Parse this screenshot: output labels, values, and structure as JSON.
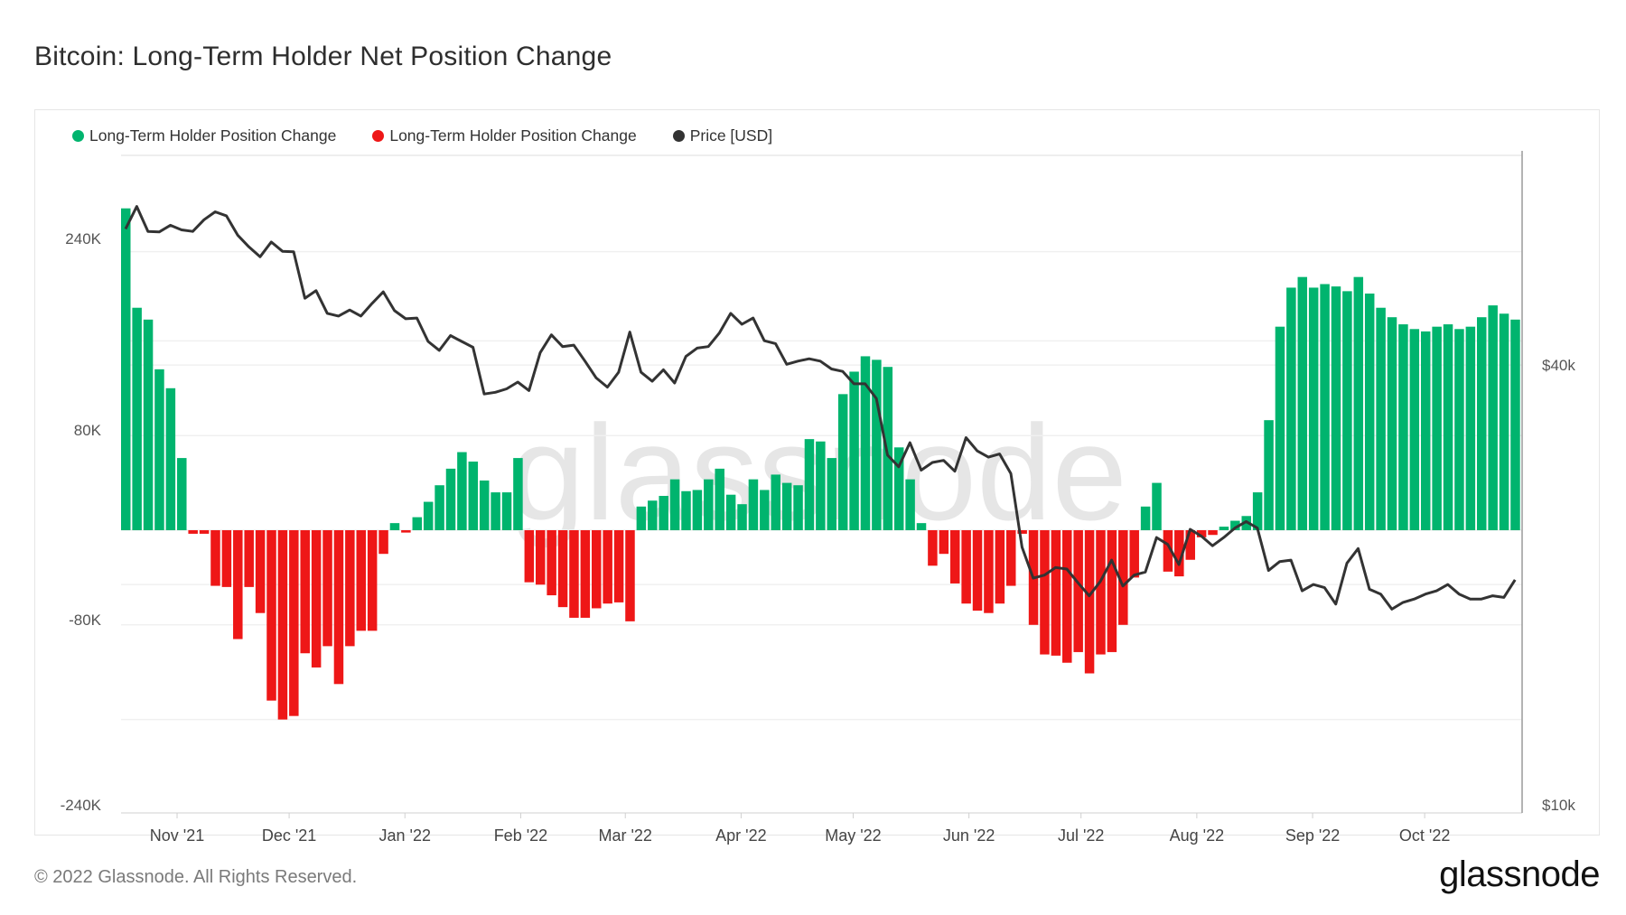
{
  "title": "Bitcoin: Long-Term Holder Net Position Change",
  "legend": [
    {
      "label": "Long-Term Holder Position Change",
      "color": "#00b46e"
    },
    {
      "label": "Long-Term Holder Position Change",
      "color": "#ee1717"
    },
    {
      "label": "Price [USD]",
      "color": "#333333"
    }
  ],
  "footer": {
    "copyright": "© 2022 Glassnode. All Rights Reserved.",
    "logo": "glassnode"
  },
  "watermark": "glassnode",
  "chart_data": {
    "type": "bar",
    "title": "Bitcoin: Long-Term Holder Net Position Change",
    "grid": true,
    "legend_position": "top-left",
    "x_tick_labels": [
      "Nov '21",
      "Dec '21",
      "Jan '22",
      "Feb '22",
      "Mar '22",
      "Apr '22",
      "May '22",
      "Jun '22",
      "Jul '22",
      "Aug '22",
      "Sep '22",
      "Oct '22"
    ],
    "x_tick_dates": [
      "2021-11-01",
      "2021-12-01",
      "2022-01-01",
      "2022-02-01",
      "2022-03-01",
      "2022-04-01",
      "2022-05-01",
      "2022-06-01",
      "2022-07-01",
      "2022-08-01",
      "2022-09-01",
      "2022-10-01"
    ],
    "y_left": {
      "tick_labels": [
        "240K",
        "80K",
        "-80K",
        "-240K"
      ],
      "ticks": [
        240000,
        80000,
        -80000,
        -240000
      ],
      "range": [
        -240000,
        280000
      ]
    },
    "y_right": {
      "scale": "log",
      "tick_labels": [
        "$40k",
        "$10k"
      ],
      "ticks": [
        40000,
        10000
      ],
      "range": [
        10000,
        80000
      ]
    },
    "dates": [
      "2021-10-17",
      "2021-10-20",
      "2021-10-23",
      "2021-10-26",
      "2021-10-29",
      "2021-11-01",
      "2021-11-04",
      "2021-11-07",
      "2021-11-10",
      "2021-11-13",
      "2021-11-16",
      "2021-11-19",
      "2021-11-22",
      "2021-11-25",
      "2021-11-28",
      "2021-12-01",
      "2021-12-04",
      "2021-12-07",
      "2021-12-10",
      "2021-12-13",
      "2021-12-16",
      "2021-12-19",
      "2021-12-22",
      "2021-12-25",
      "2021-12-28",
      "2021-12-31",
      "2022-01-03",
      "2022-01-06",
      "2022-01-09",
      "2022-01-12",
      "2022-01-15",
      "2022-01-18",
      "2022-01-21",
      "2022-01-24",
      "2022-01-27",
      "2022-01-30",
      "2022-02-02",
      "2022-02-05",
      "2022-02-08",
      "2022-02-11",
      "2022-02-14",
      "2022-02-17",
      "2022-02-20",
      "2022-02-23",
      "2022-02-26",
      "2022-03-01",
      "2022-03-04",
      "2022-03-07",
      "2022-03-10",
      "2022-03-13",
      "2022-03-16",
      "2022-03-19",
      "2022-03-22",
      "2022-03-25",
      "2022-03-28",
      "2022-03-31",
      "2022-04-03",
      "2022-04-06",
      "2022-04-09",
      "2022-04-12",
      "2022-04-15",
      "2022-04-18",
      "2022-04-21",
      "2022-04-24",
      "2022-04-27",
      "2022-04-30",
      "2022-05-03",
      "2022-05-06",
      "2022-05-09",
      "2022-05-12",
      "2022-05-15",
      "2022-05-18",
      "2022-05-21",
      "2022-05-24",
      "2022-05-27",
      "2022-05-30",
      "2022-06-02",
      "2022-06-05",
      "2022-06-08",
      "2022-06-11",
      "2022-06-14",
      "2022-06-17",
      "2022-06-20",
      "2022-06-23",
      "2022-06-26",
      "2022-06-29",
      "2022-07-02",
      "2022-07-05",
      "2022-07-08",
      "2022-07-11",
      "2022-07-14",
      "2022-07-17",
      "2022-07-20",
      "2022-07-23",
      "2022-07-26",
      "2022-07-29",
      "2022-08-01",
      "2022-08-04",
      "2022-08-07",
      "2022-08-10",
      "2022-08-13",
      "2022-08-16",
      "2022-08-19",
      "2022-08-22",
      "2022-08-25",
      "2022-08-28",
      "2022-08-31",
      "2022-09-03",
      "2022-09-06",
      "2022-09-09",
      "2022-09-12",
      "2022-09-15",
      "2022-09-18",
      "2022-09-21",
      "2022-09-24",
      "2022-09-27",
      "2022-09-30",
      "2022-10-03",
      "2022-10-06",
      "2022-10-09",
      "2022-10-12",
      "2022-10-15",
      "2022-10-18",
      "2022-10-21",
      "2022-10-24"
    ],
    "series": [
      {
        "name": "Long-Term Holder Position Change",
        "type": "bar",
        "axis": "left",
        "positive_color": "#00b46e",
        "negative_color": "#ee1717",
        "values": [
          272000,
          188000,
          178000,
          136000,
          120000,
          61000,
          -3000,
          -3000,
          -47000,
          -48000,
          -92000,
          -48000,
          -70000,
          -144000,
          -160000,
          -157000,
          -104000,
          -116000,
          -98000,
          -130000,
          -98000,
          -85000,
          -85000,
          -20000,
          6000,
          -2000,
          11000,
          24000,
          38000,
          52000,
          66000,
          58000,
          42000,
          32000,
          32000,
          61000,
          -44000,
          -46000,
          -55000,
          -65000,
          -74000,
          -74000,
          -66000,
          -62000,
          -61000,
          -77000,
          20000,
          25000,
          29000,
          43000,
          33000,
          34000,
          43000,
          52000,
          30000,
          22000,
          43000,
          34000,
          47000,
          40000,
          38000,
          77000,
          75000,
          61000,
          115000,
          134000,
          147000,
          144000,
          138000,
          70000,
          43000,
          6000,
          -30000,
          -20000,
          -45000,
          -62000,
          -68000,
          -70000,
          -62000,
          -47000,
          -3000,
          -80000,
          -105000,
          -106000,
          -112000,
          -103000,
          -121000,
          -105000,
          -103000,
          -80000,
          -40000,
          20000,
          40000,
          -35000,
          -39000,
          -25000,
          -6000,
          -4000,
          3000,
          8000,
          12000,
          32000,
          93000,
          172000,
          205000,
          214000,
          205000,
          208000,
          206000,
          202000,
          214000,
          200000,
          188000,
          180000,
          174000,
          170000,
          168000,
          172000,
          174000,
          170000,
          172000,
          180000,
          190000,
          183000,
          178000
        ]
      },
      {
        "name": "Price [USD]",
        "type": "line",
        "axis": "right",
        "color": "#333333",
        "values": [
          61500,
          66000,
          61000,
          60900,
          62200,
          61300,
          61000,
          63300,
          64900,
          64100,
          60300,
          58100,
          56300,
          59000,
          57300,
          57200,
          49400,
          50600,
          47100,
          46700,
          47600,
          46700,
          48600,
          50400,
          47500,
          46300,
          46400,
          43100,
          41900,
          43900,
          43100,
          42300,
          36500,
          36700,
          37100,
          37900,
          36900,
          41600,
          44000,
          42400,
          42600,
          40500,
          38400,
          37300,
          39100,
          44400,
          39100,
          38000,
          39400,
          37800,
          41100,
          42200,
          42400,
          44300,
          47100,
          45500,
          46400,
          43200,
          42800,
          40100,
          40500,
          40800,
          40500,
          39500,
          39200,
          37700,
          37700,
          36000,
          30100,
          29000,
          31300,
          28700,
          29400,
          29600,
          28600,
          31800,
          30500,
          29900,
          30200,
          28400,
          22500,
          20400,
          20600,
          21100,
          21000,
          20100,
          19300,
          20200,
          21600,
          19900,
          20600,
          20800,
          23200,
          22700,
          21300,
          23800,
          23300,
          22600,
          23200,
          23900,
          24400,
          23900,
          20900,
          21500,
          21600,
          19600,
          20000,
          19800,
          18800,
          21400,
          22400,
          19700,
          19400,
          18500,
          18900,
          19100,
          19400,
          19600,
          20000,
          19400,
          19100,
          19100,
          19300,
          19200,
          20300
        ]
      }
    ]
  }
}
